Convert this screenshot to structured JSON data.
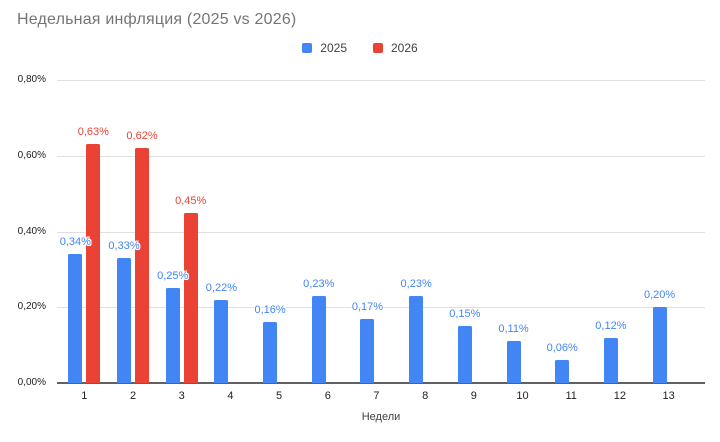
{
  "title": "Недельная инфляция (2025 vs 2026)",
  "axis": {
    "x_title": "Недели",
    "y_ticks": [
      {
        "label": "0,80%",
        "value": 0.8
      },
      {
        "label": "0,60%",
        "value": 0.6
      },
      {
        "label": "0,40%",
        "value": 0.4
      },
      {
        "label": "0,20%",
        "value": 0.2
      },
      {
        "label": "0,00%",
        "value": 0.0
      }
    ]
  },
  "colors": {
    "series_2025": "#4285F4",
    "series_2026": "#EA4335",
    "title_text": "#757575",
    "gridline": "#e0e0e0",
    "axis_line": "#616161"
  },
  "chart_data": {
    "type": "bar",
    "title": "Недельная инфляция (2025 vs 2026)",
    "categories": [
      "1",
      "2",
      "3",
      "4",
      "5",
      "6",
      "7",
      "8",
      "9",
      "10",
      "11",
      "12",
      "13"
    ],
    "series": [
      {
        "name": "2025",
        "color": "#4285F4",
        "values": [
          0.34,
          0.33,
          0.25,
          0.22,
          0.16,
          0.23,
          0.17,
          0.23,
          0.15,
          0.11,
          0.06,
          0.12,
          0.2
        ],
        "labels": [
          "0,34%",
          "0,33%",
          "0,25%",
          "0,22%",
          "0,16%",
          "0,23%",
          "0,17%",
          "0,23%",
          "0,15%",
          "0,11%",
          "0,06%",
          "0,12%",
          "0,20%"
        ]
      },
      {
        "name": "2026",
        "color": "#EA4335",
        "values": [
          0.63,
          0.62,
          0.45,
          null,
          null,
          null,
          null,
          null,
          null,
          null,
          null,
          null,
          null
        ],
        "labels": [
          "0,63%",
          "0,62%",
          "0,45%",
          null,
          null,
          null,
          null,
          null,
          null,
          null,
          null,
          null,
          null
        ]
      }
    ],
    "xlabel": "Недели",
    "ylabel": "",
    "ylim": [
      0,
      0.8
    ],
    "grid": true,
    "legend_position": "top-center"
  }
}
